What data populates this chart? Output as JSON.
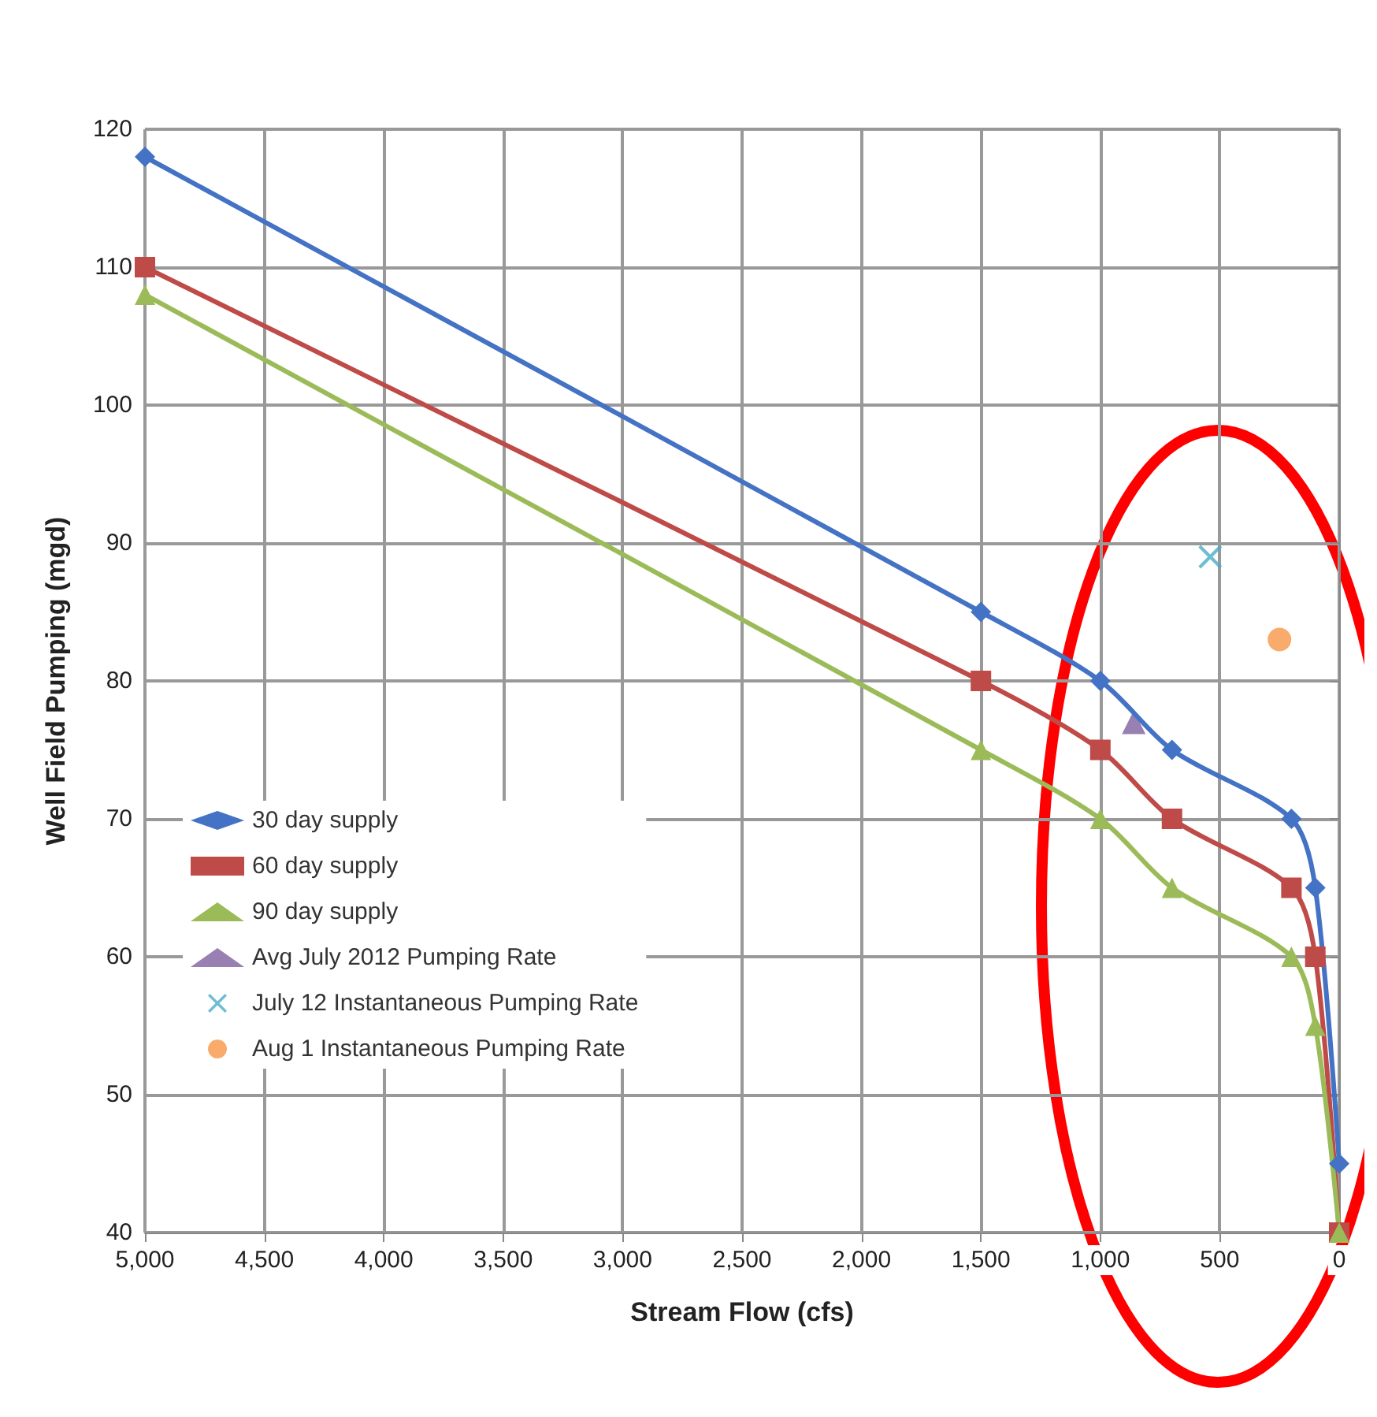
{
  "chart_data": {
    "type": "line",
    "xlabel": "Stream Flow (cfs)",
    "ylabel": "Well Field Pumping (mgd)",
    "xlim": [
      5000,
      0
    ],
    "ylim": [
      40,
      120
    ],
    "xticks": [
      {
        "value": 5000,
        "label": "5,000"
      },
      {
        "value": 4500,
        "label": "4,500"
      },
      {
        "value": 4000,
        "label": "4,000"
      },
      {
        "value": 3500,
        "label": "3,500"
      },
      {
        "value": 3000,
        "label": "3,000"
      },
      {
        "value": 2500,
        "label": "2,500"
      },
      {
        "value": 2000,
        "label": "2,000"
      },
      {
        "value": 1500,
        "label": "1,500"
      },
      {
        "value": 1000,
        "label": "1,000"
      },
      500,
      0
    ],
    "yticks": [
      40,
      50,
      60,
      70,
      80,
      90,
      100,
      110,
      120
    ],
    "grid": true,
    "legend": "bottom left",
    "series": [
      {
        "name": "30 day supply",
        "color": "#4472c4",
        "marker": "diamond",
        "x": [
          5000,
          1500,
          1000,
          700,
          200,
          100,
          0
        ],
        "values": [
          118,
          85,
          80,
          75,
          70,
          65,
          45
        ]
      },
      {
        "name": "60 day supply",
        "color": "#be4b48",
        "marker": "square",
        "x": [
          5000,
          1500,
          1000,
          700,
          200,
          100,
          0
        ],
        "values": [
          110,
          80,
          75,
          70,
          65,
          60,
          40
        ]
      },
      {
        "name": "90 day supply",
        "color": "#9bbb59",
        "marker": "triangle",
        "x": [
          5000,
          1500,
          1000,
          700,
          200,
          100,
          0
        ],
        "values": [
          108,
          75,
          70,
          65,
          60,
          55,
          40
        ]
      },
      {
        "name": "Avg July 2012 Pumping Rate",
        "type": "scatter",
        "color": "#7f60a0",
        "marker": "triangle",
        "x": [
          860
        ],
        "values": [
          77
        ]
      },
      {
        "name": "July 12 Instantaneous Pumping Rate",
        "type": "scatter",
        "color": "#4bacc6",
        "marker": "cross",
        "x": [
          540
        ],
        "values": [
          89
        ]
      },
      {
        "name": "Aug 1 Instantaneous Pumping Rate",
        "type": "scatter",
        "color": "#f79646",
        "marker": "circle",
        "x": [
          250
        ],
        "values": [
          83
        ]
      }
    ]
  }
}
